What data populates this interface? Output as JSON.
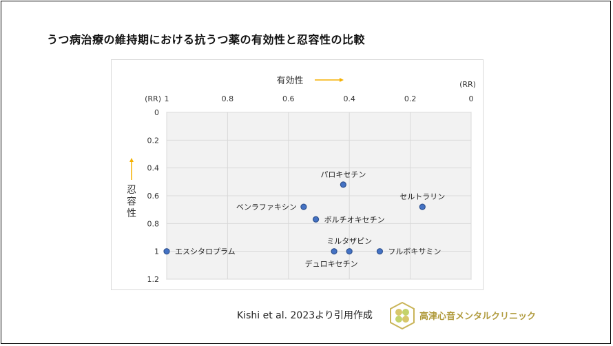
{
  "header": {
    "title": "うつ病治療の維持期における抗うつ薬の有効性と忍容性の比較"
  },
  "chart_data": {
    "type": "scatter",
    "x_axis": {
      "label": "有効性",
      "unit_label": "(RR)",
      "unit_label_right": "(RR)",
      "range": [
        1,
        0
      ],
      "ticks": [
        1,
        0.8,
        0.6,
        0.4,
        0.2,
        0
      ],
      "tick_labels": [
        "1",
        "0.8",
        "0.6",
        "0.4",
        "0.2",
        "0"
      ],
      "position": "top",
      "reversed": true
    },
    "y_axis": {
      "label": "忍容性",
      "range": [
        0,
        1.2
      ],
      "ticks": [
        0,
        0.2,
        0.4,
        0.6,
        0.8,
        1,
        1.2
      ],
      "tick_labels": [
        "0",
        "0.2",
        "0.4",
        "0.6",
        "0.8",
        "1",
        "1.2"
      ],
      "reversed": true
    },
    "grid": true,
    "points": [
      {
        "label": "エスシタロプラム",
        "x": 1.0,
        "y": 1.0,
        "label_pos": "right"
      },
      {
        "label": "デュロキセチン",
        "x": 0.45,
        "y": 1.0,
        "label_pos": "below"
      },
      {
        "label": "ミルタザピン",
        "x": 0.4,
        "y": 1.0,
        "label_pos": "above"
      },
      {
        "label": "フルボキサミン",
        "x": 0.3,
        "y": 1.0,
        "label_pos": "right"
      },
      {
        "label": "パロキセチン",
        "x": 0.42,
        "y": 0.52,
        "label_pos": "above"
      },
      {
        "label": "セルトラリン",
        "x": 0.16,
        "y": 0.68,
        "label_pos": "above"
      },
      {
        "label": "ベンラファキシン",
        "x": 0.55,
        "y": 0.68,
        "label_pos": "left"
      },
      {
        "label": "ボルチオキセチン",
        "x": 0.51,
        "y": 0.77,
        "label_pos": "right"
      }
    ],
    "colors": {
      "marker_fill": "#4472c4",
      "marker_stroke": "#2f528f",
      "arrow": "#f5b000",
      "plot_bg": "#f2f2f2",
      "grid": "#d9d9d9"
    }
  },
  "footer": {
    "citation": "Kishi et al. 2023より引用作成",
    "clinic_name": "高津心音メンタルクリニック",
    "logo_icon": "clover-logo-icon"
  }
}
